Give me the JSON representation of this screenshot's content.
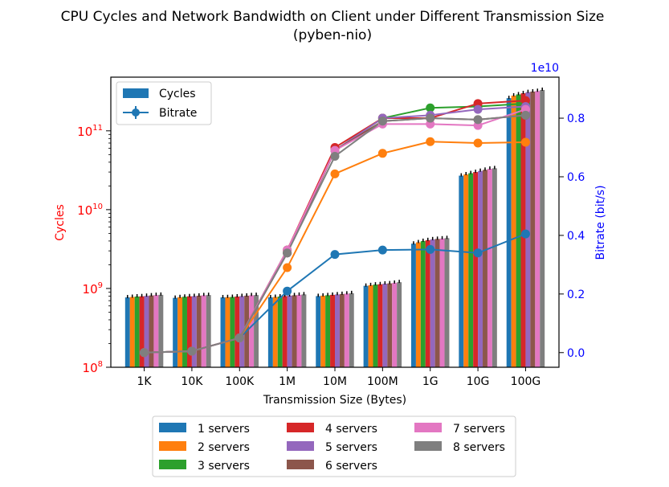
{
  "chart_data": {
    "type": "bar",
    "title": "CPU Cycles and Network Bandwidth on Client under Different Transmission Size",
    "subtitle": "(pyben-nio)",
    "xlabel": "Transmission Size (Bytes)",
    "ylabel": "Cycles",
    "y2label": "Bitrate (bit/s)",
    "y2_offset_label": "1e10",
    "categories": [
      "1K",
      "10K",
      "100K",
      "1M",
      "10M",
      "100M",
      "1G",
      "10G",
      "100G"
    ],
    "yscale": "log",
    "ylim": [
      100000000,
      480000000000
    ],
    "y_ticks": [
      {
        "value": 100000000,
        "base": "10",
        "exp": "8"
      },
      {
        "value": 1000000000,
        "base": "10",
        "exp": "9"
      },
      {
        "value": 10000000000,
        "base": "10",
        "exp": "10"
      },
      {
        "value": 100000000000,
        "base": "10",
        "exp": "11"
      }
    ],
    "y2lim": [
      -0.05,
      0.94
    ],
    "y2_ticks": [
      {
        "value": 0.0,
        "label": "0.0"
      },
      {
        "value": 0.2,
        "label": "0.2"
      },
      {
        "value": 0.4,
        "label": "0.4"
      },
      {
        "value": 0.6,
        "label": "0.6"
      },
      {
        "value": 0.8,
        "label": "0.8"
      }
    ],
    "legend_top": {
      "position": "upper-left",
      "entries": [
        {
          "label": "Cycles",
          "kind": "bar",
          "color": "#1f77b4"
        },
        {
          "label": "Bitrate",
          "kind": "line",
          "color": "#1f77b4"
        }
      ]
    },
    "legend_bottom": {
      "position": "below-axes",
      "columns": 3
    },
    "colors": {
      "cycles_axis": "#ff0000",
      "bitrate_axis": "#0000ff"
    },
    "series": [
      {
        "name": "1 servers",
        "color": "#1f77b4",
        "cycles": [
          770000000,
          760000000,
          770000000,
          770000000,
          800000000,
          1080000000,
          3700000000,
          27000000000,
          260000000000
        ],
        "bitrate": [
          0.0,
          0.005,
          0.05,
          0.21,
          0.335,
          0.35,
          0.352,
          0.34,
          0.405
        ]
      },
      {
        "name": "2 servers",
        "color": "#ff7f0e",
        "cycles": [
          780000000,
          775000000,
          775000000,
          780000000,
          810000000,
          1100000000,
          3850000000,
          28000000000,
          280000000000
        ],
        "bitrate": [
          0.0,
          0.005,
          0.05,
          0.29,
          0.61,
          0.68,
          0.72,
          0.715,
          0.718
        ]
      },
      {
        "name": "3 servers",
        "color": "#2ca02c",
        "cycles": [
          790000000,
          785000000,
          780000000,
          790000000,
          820000000,
          1120000000,
          4000000000,
          29000000000,
          290000000000
        ],
        "bitrate": [
          0.0,
          0.005,
          0.05,
          0.35,
          0.69,
          0.8,
          0.835,
          0.84,
          0.85
        ]
      },
      {
        "name": "4 servers",
        "color": "#d62728",
        "cycles": [
          795000000,
          795000000,
          790000000,
          800000000,
          830000000,
          1130000000,
          4100000000,
          30000000000,
          300000000000
        ],
        "bitrate": [
          0.0,
          0.005,
          0.05,
          0.35,
          0.7,
          0.8,
          0.8,
          0.85,
          0.86
        ]
      },
      {
        "name": "5 servers",
        "color": "#9467bd",
        "cycles": [
          805000000,
          800000000,
          800000000,
          810000000,
          840000000,
          1150000000,
          4200000000,
          31000000000,
          310000000000
        ],
        "bitrate": [
          0.0,
          0.005,
          0.05,
          0.34,
          0.69,
          0.8,
          0.81,
          0.83,
          0.84
        ]
      },
      {
        "name": "6 servers",
        "color": "#8c564b",
        "cycles": [
          815000000,
          810000000,
          810000000,
          820000000,
          850000000,
          1160000000,
          4250000000,
          32000000000,
          315000000000
        ],
        "bitrate": [
          0.0,
          0.005,
          0.05,
          0.34,
          0.69,
          0.79,
          0.8,
          0.795,
          0.81
        ]
      },
      {
        "name": "7 servers",
        "color": "#e377c2",
        "cycles": [
          825000000,
          820000000,
          820000000,
          830000000,
          860000000,
          1180000000,
          4300000000,
          33000000000,
          320000000000
        ],
        "bitrate": [
          0.0,
          0.005,
          0.05,
          0.35,
          0.69,
          0.78,
          0.78,
          0.775,
          0.83
        ]
      },
      {
        "name": "8 servers",
        "color": "#7f7f7f",
        "cycles": [
          830000000,
          825000000,
          825000000,
          840000000,
          870000000,
          1200000000,
          4350000000,
          33500000000,
          330000000000
        ],
        "bitrate": [
          0.0,
          0.005,
          0.05,
          0.34,
          0.67,
          0.79,
          0.8,
          0.795,
          0.81
        ]
      }
    ]
  }
}
